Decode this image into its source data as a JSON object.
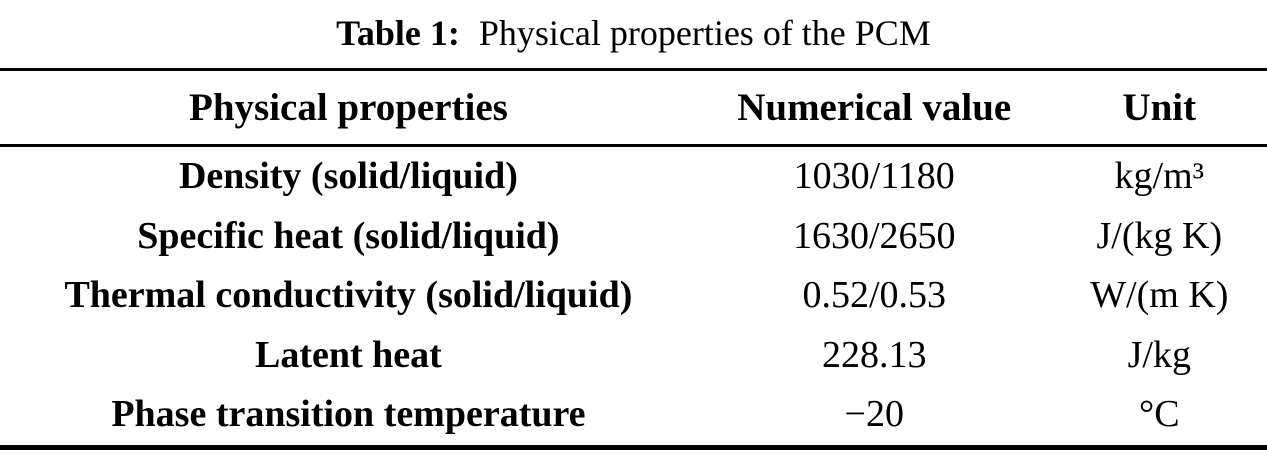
{
  "caption": {
    "label": "Table 1:",
    "text": "Physical properties of the PCM"
  },
  "table": {
    "columns": [
      "Physical properties",
      "Numerical value",
      "Unit"
    ],
    "rows": [
      {
        "property": "Density (solid/liquid)",
        "value": "1030/1180",
        "unit": "kg/m³"
      },
      {
        "property": "Specific heat (solid/liquid)",
        "value": "1630/2650",
        "unit": "J/(kg K)"
      },
      {
        "property": "Thermal conductivity (solid/liquid)",
        "value": "0.52/0.53",
        "unit": "W/(m K)"
      },
      {
        "property": "Latent heat",
        "value": "228.13",
        "unit": "J/kg"
      },
      {
        "property": "Phase transition temperature",
        "value": "−20",
        "unit": "°C"
      }
    ]
  }
}
